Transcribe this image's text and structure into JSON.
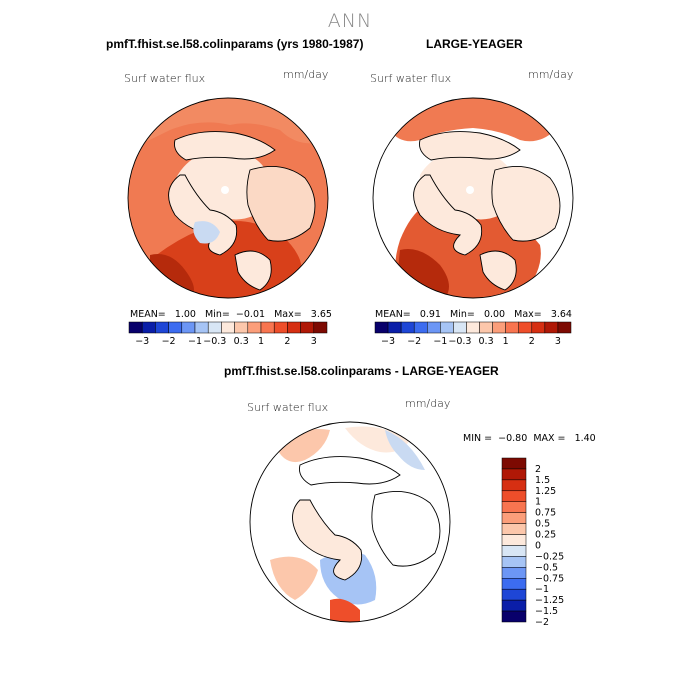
{
  "season": "ANN",
  "panels": [
    {
      "title": "pmfT.fhist.se.l58.colinparams (yrs 1980-1987)",
      "variable": "Surf water flux",
      "units": "mm/day",
      "stats": {
        "mean_label": "MEAN=",
        "mean": "1.00",
        "min_label": "Min=",
        "min": "−0.01",
        "max_label": "Max=",
        "max": "3.65"
      }
    },
    {
      "title": "LARGE-YEAGER",
      "variable": "Surf water flux",
      "units": "mm/day",
      "stats": {
        "mean_label": "MEAN=",
        "mean": "0.91",
        "min_label": "Min=",
        "min": "0.00",
        "max_label": "Max=",
        "max": "3.64"
      }
    },
    {
      "title": "pmfT.fhist.se.l58.colinparams - LARGE-YEAGER",
      "variable": "Surf water flux",
      "units": "mm/day",
      "stats": {
        "min_label": "MIN =",
        "min": "−0.80",
        "max_label": "MAX =",
        "max": "1.40"
      }
    }
  ],
  "top_colorbar": {
    "colors": [
      "#08006b",
      "#0a1ea8",
      "#1e46d6",
      "#3c6cf0",
      "#6c96f5",
      "#a6c4f5",
      "#d8e6f5",
      "#fde9dc",
      "#fcc7ab",
      "#fb9e7a",
      "#f87550",
      "#ee4e2a",
      "#d62f12",
      "#b01806",
      "#7d0a02"
    ],
    "tick_labels": [
      "−3",
      "−2",
      "−1",
      "−0.3",
      "0.3",
      "1",
      "2",
      "3"
    ]
  },
  "diff_colorbar": {
    "colors": [
      "#08006b",
      "#0a1ea8",
      "#1e46d6",
      "#3c6cf0",
      "#6c96f5",
      "#a6c4f5",
      "#d8e6f5",
      "#fde9dc",
      "#fcc7ab",
      "#fb9e7a",
      "#f87550",
      "#ee4e2a",
      "#d62f12",
      "#b01806",
      "#7d0a02"
    ],
    "tick_labels": [
      "2",
      "1.5",
      "1.25",
      "1",
      "0.75",
      "0.5",
      "0.25",
      "0",
      "−0.25",
      "−0.5",
      "−0.75",
      "−1",
      "−1.25",
      "−1.5",
      "−2"
    ]
  },
  "palette": {
    "land": "#fde9dc",
    "ocean_high": "#f07a52",
    "ocean_mid": "#f69a74",
    "ocean_deep": "#d8401a",
    "blue": "#a6c4f5"
  }
}
